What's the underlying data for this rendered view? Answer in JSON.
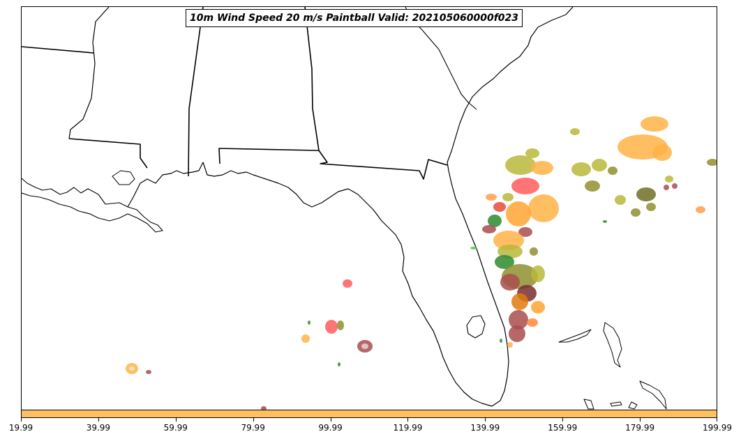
{
  "title": "10m Wind Speed 20 m/s Paintball Valid: 202105060000f023",
  "colorbar": {
    "color": "#ffc060",
    "ticks": [
      "19.99",
      "39.99",
      "59.99",
      "79.99",
      "99.99",
      "119.99",
      "139.99",
      "159.99",
      "179.99",
      "199.99"
    ]
  },
  "colors": {
    "orange": "#ffb347",
    "light_orange": "#ffbf5f",
    "red": "#ff5c5c",
    "dark_red": "#a94e4e",
    "olive": "#8f8f2f",
    "yellow_olive": "#b8b83a",
    "dark_olive": "#6e6e24",
    "green": "#2e8b2e",
    "light_green": "#4fc44f",
    "dark_orange": "#e07b10",
    "maroon": "#7a2e2e",
    "coast": "#000000"
  }
}
